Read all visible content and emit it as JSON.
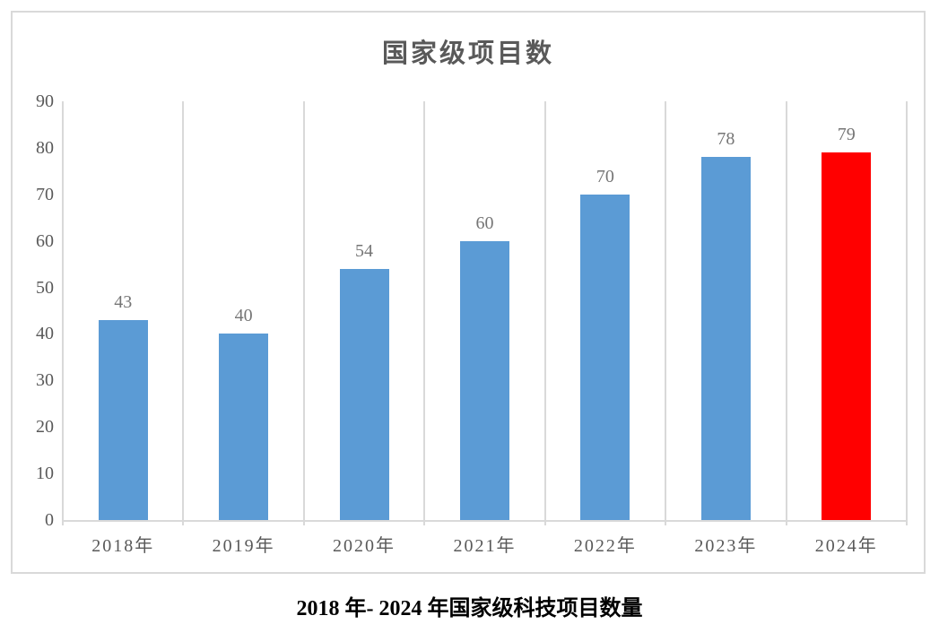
{
  "chart_data": {
    "type": "bar",
    "title": "国家级项目数",
    "caption": "2018 年- 2024 年国家级科技项目数量",
    "categories": [
      "2018年",
      "2019年",
      "2020年",
      "2021年",
      "2022年",
      "2023年",
      "2024年"
    ],
    "values": [
      43,
      40,
      54,
      60,
      70,
      78,
      79
    ],
    "data_labels": [
      "43",
      "40",
      "54",
      "60",
      "70",
      "78",
      "79"
    ],
    "bar_colors": [
      "#5B9BD5",
      "#5B9BD5",
      "#5B9BD5",
      "#5B9BD5",
      "#5B9BD5",
      "#5B9BD5",
      "#FF0000"
    ],
    "xlabel": "",
    "ylabel": "",
    "ylim": [
      0,
      90
    ],
    "yticks": [
      0,
      10,
      20,
      30,
      40,
      50,
      60,
      70,
      80,
      90
    ],
    "grid": "vertical category separators only",
    "legend": "none",
    "colors": {
      "bar_default": "#5B9BD5",
      "bar_highlight": "#FF0000",
      "gridline": "#D9D9D9",
      "title_text": "#595959",
      "tick_text": "#595959",
      "value_label_text": "#757575",
      "caption_text": "#000000"
    }
  }
}
